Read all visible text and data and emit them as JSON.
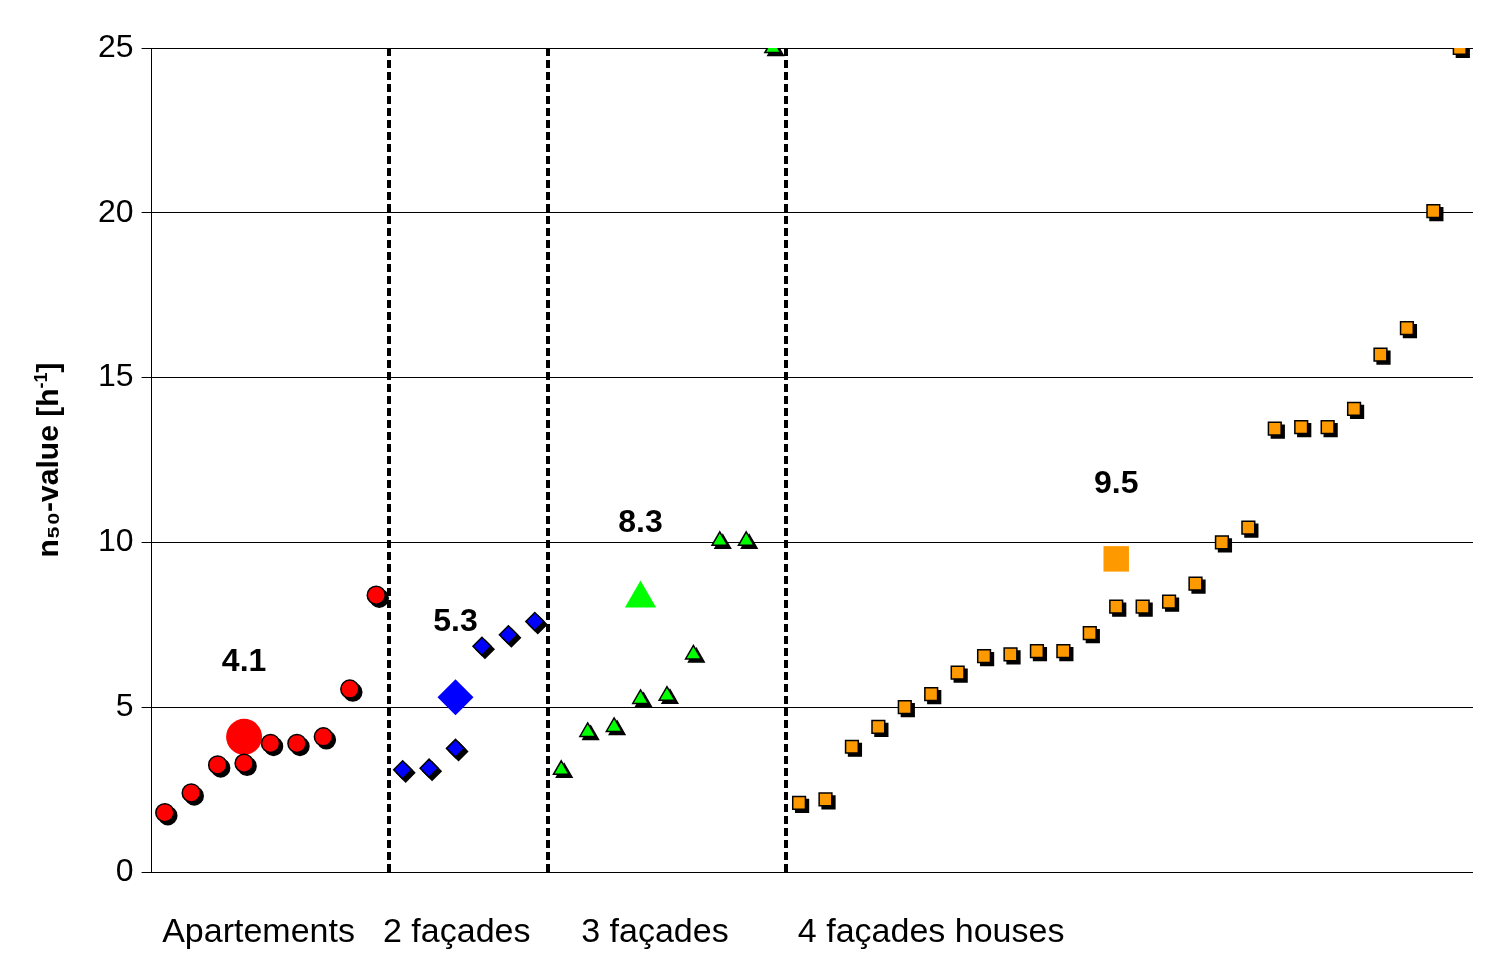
{
  "chart_data": {
    "type": "scatter",
    "ylabel": "n₅₀-value [h$^{-1}$]",
    "ylim": [
      0,
      25
    ],
    "yticks": [
      0,
      5,
      10,
      15,
      20,
      25
    ],
    "grid": "y",
    "tick_labels": "y",
    "legend": false,
    "annotations": [
      "Apartements",
      "2 façades",
      "3 façades",
      "4 façades houses"
    ],
    "categories": [
      null,
      null,
      null,
      null,
      null,
      null,
      null,
      null,
      null,
      null,
      null,
      null,
      null,
      null,
      null,
      null,
      null,
      null,
      null,
      null,
      null,
      null,
      null,
      null,
      null,
      null,
      null,
      null,
      null,
      null,
      null,
      null,
      null,
      null,
      null,
      null,
      null,
      null,
      null,
      null,
      null,
      null,
      null,
      null,
      null,
      null,
      null,
      null,
      null,
      null
    ],
    "series": [
      {
        "color": "#ff0000",
        "marker": "circle",
        "values": [
          1.8,
          2.4,
          3.25,
          3.3,
          3.9,
          3.9,
          4.1,
          5.55,
          8.4,
          null,
          null,
          null,
          null,
          null,
          null,
          null,
          null,
          null,
          null,
          null,
          null,
          null,
          null,
          null,
          null,
          null,
          null,
          null,
          null,
          null,
          null,
          null,
          null,
          null,
          null,
          null,
          null,
          null,
          null,
          null,
          null,
          null,
          null,
          null,
          null,
          null,
          null,
          null,
          null,
          null
        ]
      },
      {
        "color": "#0000ff",
        "marker": "diamond",
        "values": [
          null,
          null,
          null,
          null,
          null,
          null,
          null,
          null,
          null,
          3.1,
          3.15,
          3.75,
          6.85,
          7.2,
          7.6,
          null,
          null,
          null,
          null,
          null,
          null,
          null,
          null,
          null,
          null,
          null,
          null,
          null,
          null,
          null,
          null,
          null,
          null,
          null,
          null,
          null,
          null,
          null,
          null,
          null,
          null,
          null,
          null,
          null,
          null,
          null,
          null,
          null,
          null,
          null
        ]
      },
      {
        "color": "#00ff00",
        "marker": "triangle",
        "values": [
          null,
          null,
          null,
          null,
          null,
          null,
          null,
          null,
          null,
          null,
          null,
          null,
          null,
          null,
          null,
          3.1,
          4.25,
          4.4,
          5.25,
          5.35,
          6.6,
          10.05,
          10.05,
          25,
          null,
          null,
          null,
          null,
          null,
          null,
          null,
          null,
          null,
          null,
          null,
          null,
          null,
          null,
          null,
          null,
          null,
          null,
          null,
          null,
          null,
          null,
          null,
          null,
          null,
          null
        ]
      },
      {
        "color": "#ff9900",
        "marker": "square",
        "values": [
          null,
          null,
          null,
          null,
          null,
          null,
          null,
          null,
          null,
          null,
          null,
          null,
          null,
          null,
          null,
          null,
          null,
          null,
          null,
          null,
          null,
          null,
          null,
          null,
          2.1,
          2.2,
          3.8,
          4.4,
          5.0,
          5.4,
          6.05,
          6.55,
          6.6,
          6.7,
          6.7,
          7.25,
          8.05,
          8.05,
          8.2,
          8.75,
          10.0,
          10.45,
          13.45,
          13.5,
          13.5,
          14.05,
          15.7,
          16.5,
          20.05,
          25
        ]
      },
      {
        "color": "#ff0000",
        "marker": "circle",
        "values": [
          null,
          null,
          null,
          4.1,
          null,
          null,
          null,
          null,
          null,
          null,
          null,
          null,
          null,
          null,
          null,
          null,
          null,
          null,
          null,
          null,
          null,
          null,
          null,
          null,
          null,
          null,
          null,
          null,
          null,
          null,
          null,
          null,
          null,
          null,
          null,
          null,
          null,
          null,
          null,
          null,
          null,
          null,
          null,
          null,
          null,
          null,
          null,
          null,
          null,
          null
        ],
        "value_labels": [
          null,
          null,
          null,
          "4.1",
          null,
          null,
          null,
          null,
          null,
          null,
          null,
          null,
          null,
          null,
          null,
          null,
          null,
          null,
          null,
          null,
          null,
          null,
          null,
          null,
          null,
          null,
          null,
          null,
          null,
          null,
          null,
          null,
          null,
          null,
          null,
          null,
          null,
          null,
          null,
          null,
          null,
          null,
          null,
          null,
          null,
          null,
          null,
          null,
          null,
          null
        ]
      },
      {
        "color": "#0000ff",
        "marker": "diamond",
        "values": [
          null,
          null,
          null,
          null,
          null,
          null,
          null,
          null,
          null,
          null,
          null,
          5.3,
          null,
          null,
          null,
          null,
          null,
          null,
          null,
          null,
          null,
          null,
          null,
          null,
          null,
          null,
          null,
          null,
          null,
          null,
          null,
          null,
          null,
          null,
          null,
          null,
          null,
          null,
          null,
          null,
          null,
          null,
          null,
          null,
          null,
          null,
          null,
          null,
          null,
          null
        ],
        "value_labels": [
          null,
          null,
          null,
          null,
          null,
          null,
          null,
          null,
          null,
          null,
          null,
          "5.3",
          null,
          null,
          null,
          null,
          null,
          null,
          null,
          null,
          null,
          null,
          null,
          null,
          null,
          null,
          null,
          null,
          null,
          null,
          null,
          null,
          null,
          null,
          null,
          null,
          null,
          null,
          null,
          null,
          null,
          null,
          null,
          null,
          null,
          null,
          null,
          null,
          null,
          null
        ]
      },
      {
        "color": "#00ff00",
        "marker": "triangle",
        "values": [
          null,
          null,
          null,
          null,
          null,
          null,
          null,
          null,
          null,
          null,
          null,
          null,
          null,
          null,
          null,
          null,
          null,
          null,
          8.3,
          null,
          null,
          null,
          null,
          null,
          null,
          null,
          null,
          null,
          null,
          null,
          null,
          null,
          null,
          null,
          null,
          null,
          null,
          null,
          null,
          null,
          null,
          null,
          null,
          null,
          null,
          null,
          null,
          null,
          null,
          null
        ],
        "value_labels": [
          null,
          null,
          null,
          null,
          null,
          null,
          null,
          null,
          null,
          null,
          null,
          null,
          null,
          null,
          null,
          null,
          null,
          null,
          "8.3",
          null,
          null,
          null,
          null,
          null,
          null,
          null,
          null,
          null,
          null,
          null,
          null,
          null,
          null,
          null,
          null,
          null,
          null,
          null,
          null,
          null,
          null,
          null,
          null,
          null,
          null,
          null,
          null,
          null,
          null,
          null
        ]
      },
      {
        "color": "#ff9900",
        "marker": "square",
        "values": [
          null,
          null,
          null,
          null,
          null,
          null,
          null,
          null,
          null,
          null,
          null,
          null,
          null,
          null,
          null,
          null,
          null,
          null,
          null,
          null,
          null,
          null,
          null,
          null,
          null,
          null,
          null,
          null,
          null,
          null,
          null,
          null,
          null,
          null,
          null,
          null,
          9.5,
          null,
          null,
          null,
          null,
          null,
          null,
          null,
          null,
          null,
          null,
          null,
          null,
          null
        ],
        "value_labels": [
          null,
          null,
          null,
          null,
          null,
          null,
          null,
          null,
          null,
          null,
          null,
          null,
          null,
          null,
          null,
          null,
          null,
          null,
          null,
          null,
          null,
          null,
          null,
          null,
          null,
          null,
          null,
          null,
          null,
          null,
          null,
          null,
          null,
          null,
          null,
          null,
          "9.5",
          null,
          null,
          null,
          null,
          null,
          null,
          null,
          null,
          null,
          null,
          null,
          null,
          null
        ]
      }
    ]
  }
}
